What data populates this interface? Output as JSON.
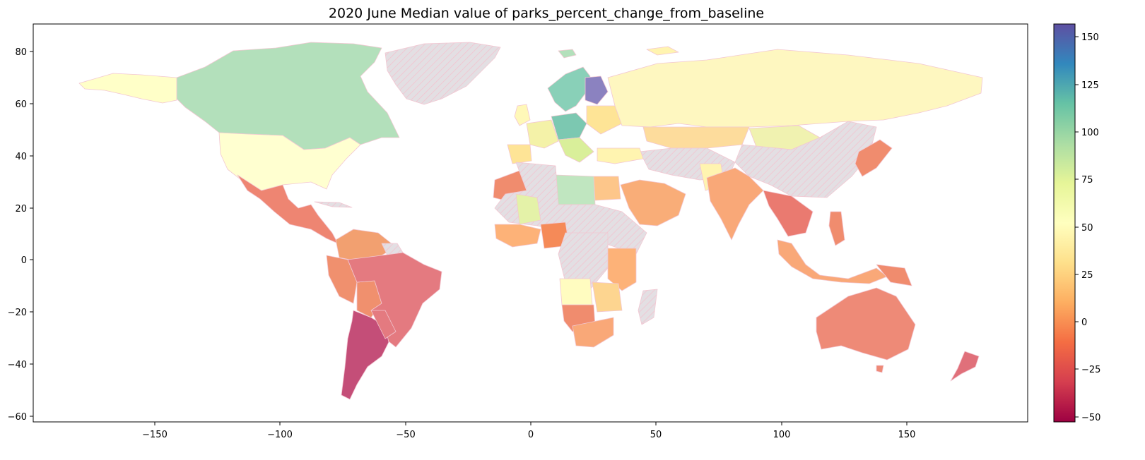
{
  "chart_data": {
    "type": "choropleth",
    "title": "2020 June Median value of parks_percent_change_from_baseline",
    "xlabel": "",
    "ylabel": "",
    "xlim": [
      -198,
      198
    ],
    "ylim": [
      -62,
      91
    ],
    "xticks": [
      -150,
      -100,
      -50,
      0,
      50,
      100,
      150
    ],
    "xtick_labels": [
      "−150",
      "−100",
      "−50",
      "0",
      "50",
      "100",
      "150"
    ],
    "yticks": [
      -60,
      -40,
      -20,
      0,
      20,
      40,
      60,
      80
    ],
    "ytick_labels": [
      "−60",
      "−40",
      "−20",
      "0",
      "20",
      "40",
      "60",
      "80"
    ],
    "colorbar": {
      "colormap": "Spectral",
      "range": [
        -53,
        157
      ],
      "ticks": [
        -50,
        -25,
        0,
        25,
        50,
        75,
        100,
        125,
        150
      ],
      "tick_labels": [
        "−50",
        "−25",
        "0",
        "25",
        "50",
        "75",
        "100",
        "125",
        "150"
      ]
    },
    "missing_data_style": "grey hatched with pink edges",
    "grid": false
  }
}
